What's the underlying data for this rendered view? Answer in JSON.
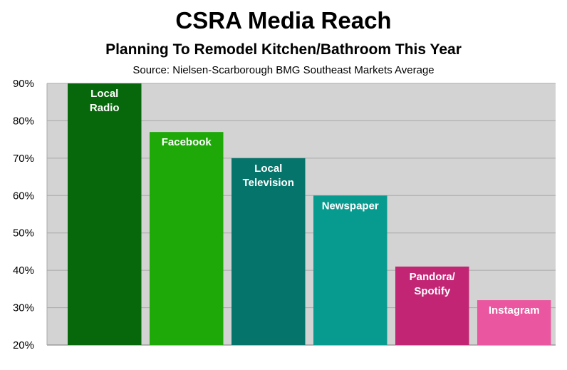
{
  "chart_data": {
    "type": "bar",
    "title": "CSRA Media Reach",
    "subtitle": "Planning To Remodel Kitchen/Bathroom This Year",
    "source": "Source: Nielsen-Scarborough BMG Southeast Markets Average",
    "categories": [
      [
        "Local",
        "Radio"
      ],
      [
        "Facebook"
      ],
      [
        "Local",
        "Television"
      ],
      [
        "Newspaper"
      ],
      [
        "Pandora/",
        "Spotify"
      ],
      [
        "Instagram"
      ]
    ],
    "values": [
      90,
      77,
      70,
      60,
      41,
      32
    ],
    "colors": [
      "#06680a",
      "#1fa908",
      "#05746a",
      "#079a8f",
      "#c12574",
      "#ea569f"
    ],
    "ylim": [
      20,
      90
    ],
    "yticks": [
      90,
      80,
      70,
      60,
      50,
      40,
      30,
      20
    ],
    "ytick_labels": [
      "90%",
      "80%",
      "70%",
      "60%",
      "50%",
      "40%",
      "30%",
      "20%"
    ],
    "grid": true,
    "plot_background": "#d3d3d3"
  }
}
